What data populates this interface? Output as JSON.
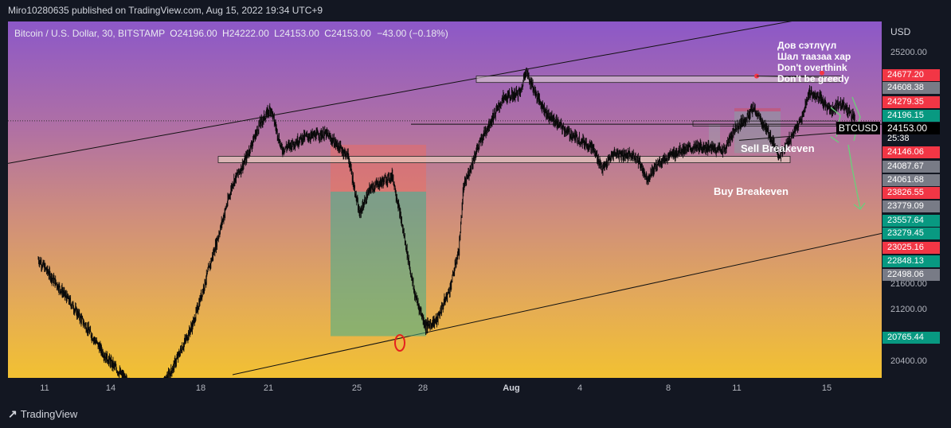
{
  "header": {
    "text": "Miro10280635 published on TradingView.com, Aug 15, 2022 19:34 UTC+9"
  },
  "legend": {
    "symbol": "Bitcoin / U.S. Dollar, 30, BITSTAMP",
    "o_label": "O",
    "o": "24196.00",
    "h_label": "H",
    "h": "24222.00",
    "l_label": "L",
    "l": "24153.00",
    "c_label": "C",
    "c": "24153.00",
    "change": "−43.00 (−0.18%)"
  },
  "currency": "USD",
  "ticker_tag": "BTCUSD",
  "countdown": "25:38",
  "annotations": {
    "note_lines": [
      "Дов сэтлүүл",
      "Шал таазаа хар",
      "Don't overthink",
      "Don't be greedy"
    ],
    "sell_breakeven": "Sell Breakeven",
    "buy_breakeven": "Buy Breakeven"
  },
  "footer": {
    "brand": "TradingView"
  },
  "colors": {
    "bg": "#131722",
    "green_tag": "#089981",
    "red_tag": "#f23645",
    "gray_tag": "#787b86"
  },
  "chart_data": {
    "type": "candlestick",
    "symbol": "BTCUSD",
    "timeframe": "30",
    "exchange": "BITSTAMP",
    "ylim": [
      20150,
      25700
    ],
    "price_ticks": [
      "25200.00",
      "21600.00",
      "21200.00",
      "20400.00"
    ],
    "x_ticks": [
      "11",
      "14",
      "18",
      "21",
      "25",
      "28",
      "Aug",
      "4",
      "8",
      "11",
      "15"
    ],
    "last_price": "24153.00",
    "price_tags": [
      {
        "value": "24677.20",
        "color": "red"
      },
      {
        "value": "24608.38",
        "color": "gray"
      },
      {
        "value": "24279.35",
        "color": "red"
      },
      {
        "value": "24196.15",
        "color": "green"
      },
      {
        "value": "24153.00",
        "color": "black"
      },
      {
        "value": "24146.06",
        "color": "red"
      },
      {
        "value": "24087.67",
        "color": "gray"
      },
      {
        "value": "24061.68",
        "color": "gray"
      },
      {
        "value": "23826.55",
        "color": "red"
      },
      {
        "value": "23779.09",
        "color": "gray"
      },
      {
        "value": "23557.64",
        "color": "green"
      },
      {
        "value": "23279.45",
        "color": "green"
      },
      {
        "value": "23025.16",
        "color": "red"
      },
      {
        "value": "22848.13",
        "color": "green"
      },
      {
        "value": "22498.06",
        "color": "gray"
      },
      {
        "value": "20765.44",
        "color": "green"
      }
    ],
    "price_path": [
      [
        0,
        22000
      ],
      [
        1.5,
        21300
      ],
      [
        3,
        20500
      ],
      [
        4.5,
        19900
      ],
      [
        5,
        19700
      ],
      [
        6,
        20250
      ],
      [
        7,
        21000
      ],
      [
        8,
        22200
      ],
      [
        8.8,
        23200
      ],
      [
        9.3,
        23500
      ],
      [
        10,
        24100
      ],
      [
        10.5,
        24350
      ],
      [
        11,
        23700
      ],
      [
        12,
        23900
      ],
      [
        13,
        23950
      ],
      [
        14,
        23600
      ],
      [
        14.5,
        22700
      ],
      [
        15,
        23100
      ],
      [
        16,
        23300
      ],
      [
        16.5,
        22400
      ],
      [
        17,
        21450
      ],
      [
        17.5,
        20950
      ],
      [
        18,
        21050
      ],
      [
        18.6,
        21550
      ],
      [
        19,
        22150
      ],
      [
        19.2,
        23100
      ],
      [
        19.8,
        23700
      ],
      [
        20.2,
        24000
      ],
      [
        21,
        24500
      ],
      [
        21.8,
        24600
      ],
      [
        22,
        24950
      ],
      [
        22.5,
        24550
      ],
      [
        23,
        24250
      ],
      [
        24,
        23950
      ],
      [
        25,
        23750
      ],
      [
        25.5,
        23400
      ],
      [
        26,
        23650
      ],
      [
        27,
        23600
      ],
      [
        27.5,
        23250
      ],
      [
        28,
        23500
      ],
      [
        29,
        23700
      ],
      [
        30,
        23750
      ],
      [
        31,
        23700
      ],
      [
        31.5,
        24050
      ],
      [
        32,
        24200
      ],
      [
        32.3,
        24350
      ],
      [
        33,
        23950
      ],
      [
        33.5,
        23600
      ],
      [
        34,
        23900
      ],
      [
        34.5,
        24200
      ],
      [
        34.8,
        24600
      ],
      [
        35.3,
        24500
      ],
      [
        35.8,
        24300
      ],
      [
        36.2,
        24450
      ],
      [
        36.6,
        24300
      ],
      [
        36.9,
        24196
      ]
    ],
    "levels": [
      {
        "name": "resistance-zone",
        "from": 24750,
        "to": 24850
      },
      {
        "name": "support-zone",
        "from": 23500,
        "to": 23600
      },
      {
        "name": "upper-line",
        "value": 24120
      },
      {
        "name": "mid-line",
        "value": 24100
      }
    ]
  }
}
